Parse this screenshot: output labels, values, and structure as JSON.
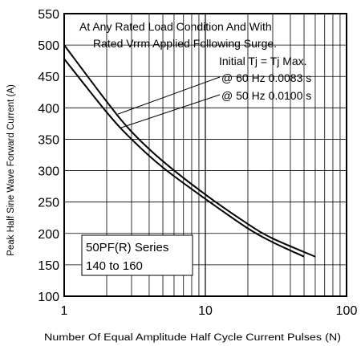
{
  "chart_data": {
    "type": "line",
    "x_scale": "log",
    "xlim": [
      1,
      100
    ],
    "ylim": [
      100,
      550
    ],
    "grid": true,
    "xlabel": "Number Of Equal Amplitude Half Cycle Current Pulses (N)",
    "ylabel": "Peak Half Sine Wave Forward Current (A)",
    "x_ticks": [
      "1",
      "10",
      "100"
    ],
    "y_ticks": [
      "100",
      "150",
      "200",
      "250",
      "300",
      "350",
      "400",
      "450",
      "500",
      "550"
    ],
    "series": [
      {
        "name": "@ 60 Hz 0.0083 s",
        "x": [
          1,
          2,
          3,
          5,
          10,
          20,
          30,
          60
        ],
        "y": [
          500,
          410,
          362,
          315,
          262,
          215,
          192,
          163
        ]
      },
      {
        "name": "@ 50 Hz 0.0100 s",
        "x": [
          1,
          2,
          3,
          5,
          10,
          20,
          30,
          50
        ],
        "y": [
          478,
          393,
          350,
          305,
          255,
          208,
          186,
          163
        ]
      }
    ],
    "annotations": {
      "line1": "At Any Rated Load Condition And With",
      "line2": "Rated Vrrm Applied Following Surge.",
      "line3": "Initial Tj = Tj Max.",
      "line4": "@ 60 Hz 0.0083 s",
      "line5": "@ 50 Hz 0.0100 s"
    },
    "series_box": {
      "line1": "50PF(R) Series",
      "line2": "140 to 160"
    }
  }
}
